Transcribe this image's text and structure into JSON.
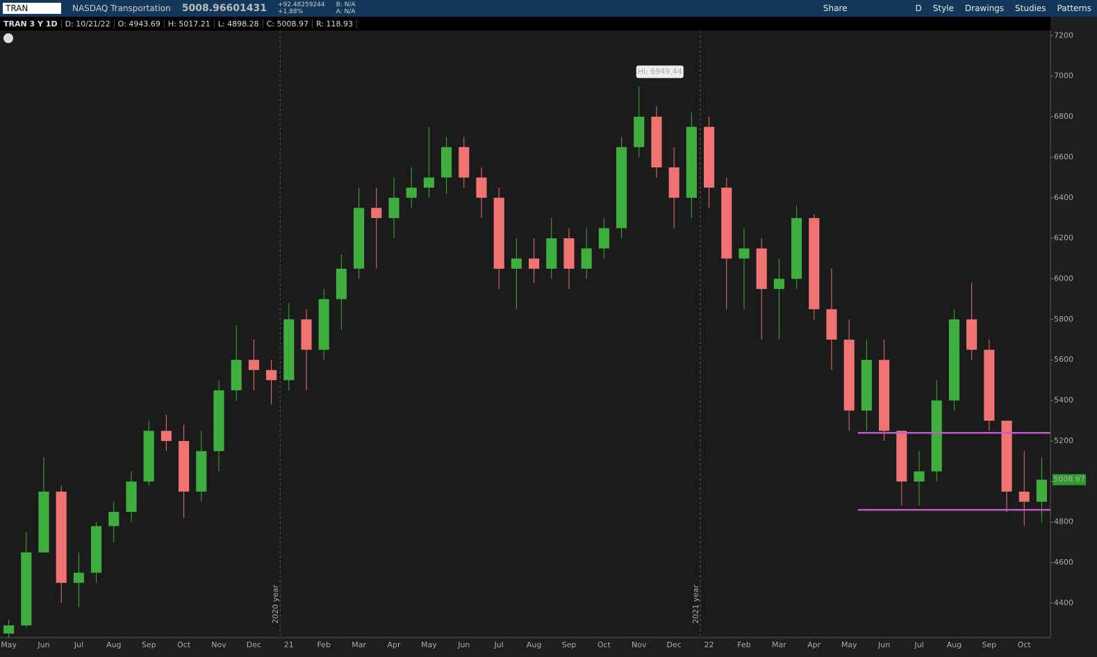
{
  "toolbar": {
    "symbol": "TRAN",
    "description": "NASDAQ Transportation",
    "last": "5008.96601431",
    "change": "+92.48259244",
    "change_pct": "+1.88%",
    "bid": "B: N/A",
    "ask": "A: N/A",
    "buttons": [
      "Share",
      "D",
      "Style",
      "Drawings",
      "Studies",
      "Patterns"
    ]
  },
  "info_bar": [
    "TRAN 3 Y 1D",
    "D: 10/21/22",
    "O: 4943.69",
    "H: 5017.21",
    "L: 4898.28",
    "C: 5008.97",
    "R: 118.93"
  ],
  "chart_data": {
    "type": "candlestick",
    "categories": [
      "May",
      null,
      "Jun",
      null,
      "Jul",
      null,
      "Aug",
      null,
      "Sep",
      null,
      "Oct",
      null,
      "Nov",
      null,
      "Dec",
      null,
      "21",
      null,
      "Feb",
      null,
      "Mar",
      null,
      "Apr",
      null,
      "May",
      null,
      "Jun",
      null,
      "Jul",
      null,
      "Aug",
      null,
      "Sep",
      null,
      "Oct",
      null,
      "Nov",
      null,
      "Dec",
      null,
      "22",
      null,
      "Feb",
      null,
      "Mar",
      null,
      "Apr",
      null,
      "May",
      null,
      "Jun",
      null,
      "Jul",
      null,
      "Aug",
      null,
      "Sep",
      null,
      "Oct",
      null
    ],
    "open": [
      4250,
      4290,
      4650,
      4950,
      4500,
      4550,
      4780,
      4850,
      5000,
      5250,
      5200,
      4950,
      5150,
      5450,
      5600,
      5550,
      5500,
      5800,
      5650,
      5900,
      6050,
      6350,
      6300,
      6400,
      6450,
      6500,
      6650,
      6500,
      6400,
      6050,
      6100,
      6050,
      6200,
      6050,
      6150,
      6250,
      6650,
      6800,
      6550,
      6400,
      6750,
      6450,
      6100,
      6150,
      5950,
      6000,
      6300,
      5850,
      5700,
      5350,
      5600,
      5250,
      5000,
      5050,
      5400,
      5800,
      5650,
      5300,
      4950,
      4900
    ],
    "high": [
      4320,
      4750,
      5120,
      4980,
      4650,
      4800,
      4900,
      5050,
      5300,
      5330,
      5280,
      5250,
      5500,
      5770,
      5700,
      5600,
      5880,
      5850,
      5950,
      6120,
      6450,
      6450,
      6500,
      6550,
      6750,
      6700,
      6700,
      6550,
      6450,
      6200,
      6200,
      6300,
      6250,
      6250,
      6300,
      6700,
      6949.44,
      6850,
      6650,
      6820,
      6800,
      6500,
      6250,
      6200,
      6100,
      6360,
      6320,
      6050,
      5800,
      5700,
      5700,
      5250,
      5150,
      5500,
      5850,
      5980,
      5700,
      5300,
      5150,
      5120
    ],
    "low": [
      4230,
      4280,
      4650,
      4400,
      4380,
      4500,
      4700,
      4800,
      4980,
      5150,
      4820,
      4900,
      5050,
      5400,
      5450,
      5380,
      5450,
      5450,
      5600,
      5750,
      6000,
      6050,
      6200,
      6350,
      6400,
      6420,
      6450,
      6300,
      5950,
      5850,
      5980,
      6000,
      5950,
      6000,
      6100,
      6200,
      6600,
      6500,
      6250,
      6300,
      6350,
      5850,
      5850,
      5700,
      5700,
      5950,
      5800,
      5550,
      5250,
      5250,
      5200,
      4880,
      4880,
      5000,
      5350,
      5600,
      5250,
      4850,
      4780,
      4800
    ],
    "close": [
      4290,
      4650,
      4950,
      4500,
      4550,
      4780,
      4850,
      5000,
      5250,
      5200,
      4950,
      5150,
      5450,
      5600,
      5550,
      5500,
      5800,
      5650,
      5900,
      6050,
      6350,
      6300,
      6400,
      6450,
      6500,
      6650,
      6500,
      6400,
      6050,
      6100,
      6050,
      6200,
      6050,
      6150,
      6250,
      6650,
      6800,
      6550,
      6400,
      6750,
      6450,
      6100,
      6150,
      5950,
      6000,
      6300,
      5850,
      5700,
      5350,
      5600,
      5250,
      5000,
      5050,
      5400,
      5800,
      5650,
      5300,
      4950,
      4900,
      5008.97
    ],
    "up_color": "#3fae3f",
    "down_color": "#ef7373",
    "ylim": [
      4230,
      7225
    ],
    "yticks": [
      4400,
      4600,
      4800,
      5000,
      5200,
      5400,
      5600,
      5800,
      6000,
      6200,
      6400,
      6600,
      6800,
      7000,
      7200
    ],
    "high_label": "Hi: 6949.44",
    "separators": [
      {
        "label": "2020 year",
        "index": 16
      },
      {
        "label": "2021 year",
        "index": 40
      }
    ],
    "levels": [
      {
        "value": 5240,
        "color": "#c05ec9"
      },
      {
        "value": 4860,
        "color": "#c05ec9"
      }
    ]
  }
}
